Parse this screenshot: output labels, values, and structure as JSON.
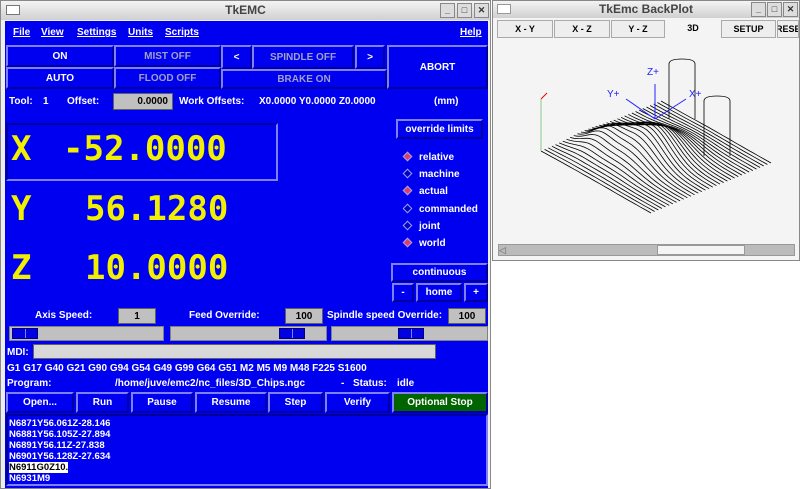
{
  "main_window": {
    "title": "TkEMC",
    "menu": [
      "File",
      "View",
      "Settings",
      "Units",
      "Scripts",
      "Help"
    ],
    "buttons": {
      "on": "ON",
      "mist": "MIST OFF",
      "spindle_dec": "<",
      "spindle": "SPINDLE OFF",
      "spindle_inc": ">",
      "abort": "ABORT",
      "auto": "AUTO",
      "flood": "FLOOD OFF",
      "brake": "BRAKE ON"
    },
    "tool": {
      "label": "Tool:",
      "value": "1",
      "offset_label": "Offset:",
      "offset_value": "0.0000",
      "work_offsets_label": "Work Offsets:",
      "work_offsets": "X0.0000 Y0.0000 Z0.0000",
      "units": "(mm)"
    },
    "positions": [
      {
        "axis": "X",
        "value": "-52.0000"
      },
      {
        "axis": "Y",
        "value": "56.1280"
      },
      {
        "axis": "Z",
        "value": "10.0000"
      }
    ],
    "override_limits": "override limits",
    "radios": [
      {
        "label": "relative",
        "selected": true
      },
      {
        "label": "machine",
        "selected": false
      },
      {
        "label": "actual",
        "selected": true
      },
      {
        "label": "commanded",
        "selected": false
      },
      {
        "label": "joint",
        "selected": false
      },
      {
        "label": "world",
        "selected": true
      }
    ],
    "jog": {
      "mode": "continuous",
      "minus": "-",
      "home": "home",
      "plus": "+"
    },
    "speeds": {
      "axis_label": "Axis Speed:",
      "axis_value": "1",
      "feed_label": "Feed Override:",
      "feed_value": "100",
      "spindle_label": "Spindle speed Override:",
      "spindle_value": "100"
    },
    "mdi": {
      "label": "MDI:",
      "value": ""
    },
    "gcodes": "G1 G17 G40 G21 G90 G94 G54 G49 G99 G64 G51 M2 M5 M9 M48 F225 S1600",
    "program": {
      "label": "Program:",
      "path": "/home/juve/emc2/nc_files/3D_Chips.ngc",
      "sep": "-",
      "status_label": "Status:",
      "status": "idle"
    },
    "actions": [
      "Open...",
      "Run",
      "Pause",
      "Resume",
      "Step",
      "Verify",
      "Optional Stop"
    ],
    "code_lines": [
      "N6871Y56.061Z-28.146",
      "N6881Y56.105Z-27.894",
      "N6891Y56.11Z-27.838",
      "N6901Y56.128Z-27.634",
      "N6911G0Z10.",
      "N6931M9"
    ],
    "highlight_line": 4,
    "colors": {
      "bg": "#0000f0",
      "position_text": "#f0f000",
      "optional_stop": "#006400"
    }
  },
  "backplot": {
    "title": "TkEmc BackPlot",
    "tabs": [
      "X - Y",
      "X - Z",
      "Y - Z",
      "3D",
      "SETUP",
      "RESET"
    ],
    "axis_labels": {
      "z": "Z+",
      "y": "Y+",
      "x": "X+"
    }
  }
}
